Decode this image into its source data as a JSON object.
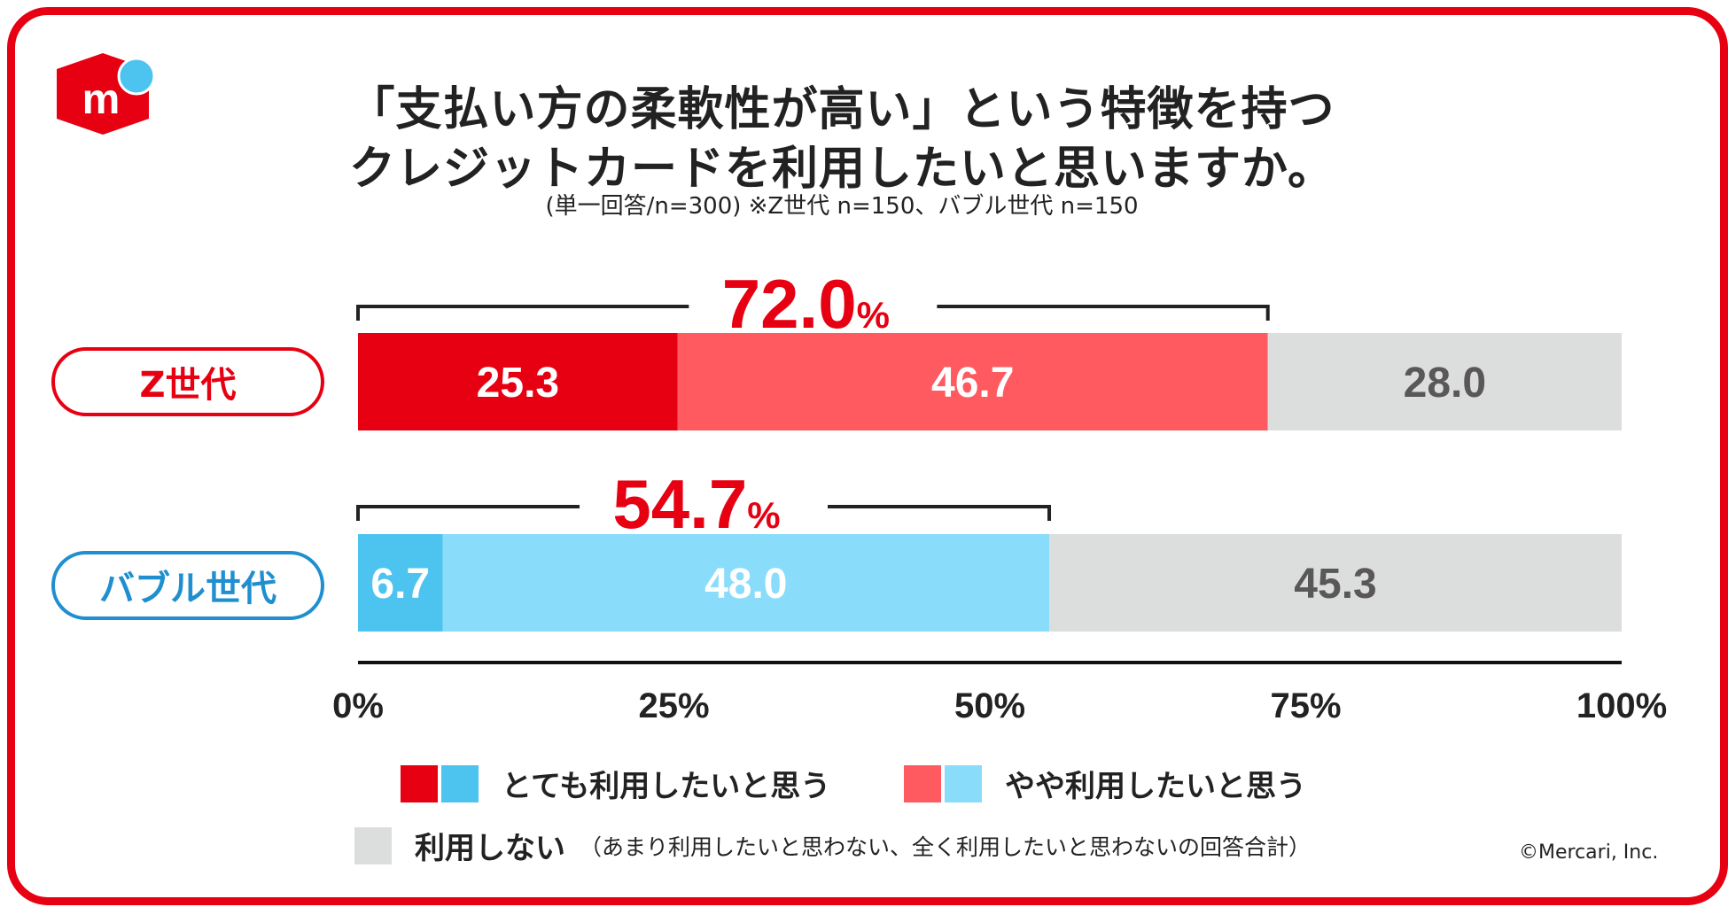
{
  "logo": {
    "icon": "mercari-box-icon",
    "letter": "m",
    "colors": {
      "box": "#e60012",
      "dot": "#4dc3f0"
    }
  },
  "title": {
    "line1": "「支払い方の柔軟性が高い」という特徴を持つ",
    "line2": "クレジットカードを利用したいと思いますか。",
    "subtitle": "(単一回答/n=300) ※Z世代 n=150、バブル世代 n=150"
  },
  "chart_data": {
    "type": "bar",
    "orientation": "horizontal",
    "stacked": true,
    "categories": [
      "Z世代",
      "バブル世代"
    ],
    "series": [
      {
        "name": "とても利用したいと思う",
        "values": [
          25.3,
          6.7
        ],
        "colors": [
          "#e60012",
          "#4dc3f0"
        ],
        "label_colors": [
          "#ffffff",
          "#ffffff"
        ]
      },
      {
        "name": "やや利用したいと思う",
        "values": [
          46.7,
          48.0
        ],
        "colors": [
          "#ff5a5f",
          "#8adcfb"
        ],
        "label_colors": [
          "#ffffff",
          "#ffffff"
        ]
      },
      {
        "name": "利用しない",
        "values": [
          28.0,
          45.3
        ],
        "colors": [
          "#dcdddd",
          "#dcdddd"
        ],
        "label_colors": [
          "#595757",
          "#595757"
        ]
      }
    ],
    "totals": [
      {
        "category": "Z世代",
        "value": "72.0",
        "unit": "%"
      },
      {
        "category": "バブル世代",
        "value": "54.7",
        "unit": "%"
      }
    ],
    "xlim": [
      0,
      100
    ],
    "xticks": [
      "0%",
      "25%",
      "50%",
      "75%",
      "100%"
    ],
    "category_colors": [
      "#e60012",
      "#1f8fcf"
    ],
    "accent": "#e60012"
  },
  "legend": {
    "item1": "とても利用したいと思う",
    "item2": "やや利用したいと思う",
    "item3": "利用しない",
    "item3_note": "（あまり利用したいと思わない、全く利用したいと思わないの回答合計）"
  },
  "copyright": "©Mercari, Inc."
}
